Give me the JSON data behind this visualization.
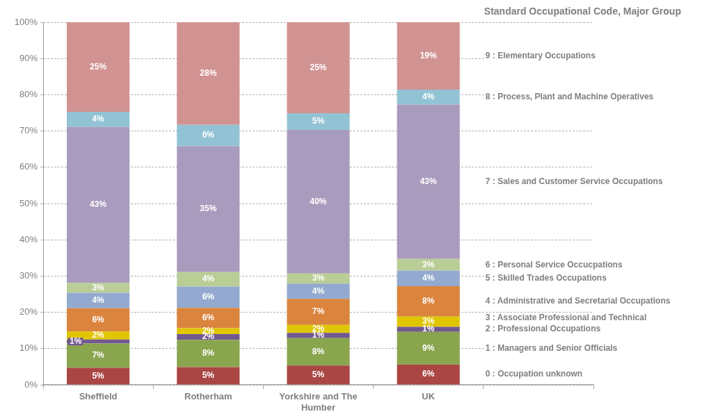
{
  "chart_data": {
    "type": "bar",
    "stacked": true,
    "legend_title": "Standard Occupational Code, Major Group",
    "categories": [
      "Sheffield",
      "Rotherham",
      "Yorkshire and The Humber",
      "UK",
      null
    ],
    "ylim": [
      0,
      100
    ],
    "yticks": [
      {
        "value": 0,
        "label": "0%"
      },
      {
        "value": 10,
        "label": "10%"
      },
      {
        "value": 20,
        "label": "20%"
      },
      {
        "value": 30,
        "label": "30%"
      },
      {
        "value": 40,
        "label": "40%"
      },
      {
        "value": 50,
        "label": "50%"
      },
      {
        "value": 60,
        "label": "60%"
      },
      {
        "value": 70,
        "label": "70%"
      },
      {
        "value": 80,
        "label": "80%"
      },
      {
        "value": 90,
        "label": "90%"
      },
      {
        "value": 100,
        "label": "100%"
      }
    ],
    "grid": "y",
    "series": [
      {
        "name": "0 : Occupation unknown",
        "color": "#aa4643",
        "values": [
          4.7,
          4.9,
          5.3,
          5.6,
          null
        ],
        "value_labels": [
          "5%",
          "5%",
          "5%",
          "6%",
          null
        ]
      },
      {
        "name": "1 : Managers and Senior Officials",
        "color": "#89a54e",
        "values": [
          6.7,
          7.5,
          7.6,
          9.0,
          null
        ],
        "value_labels": [
          "7%",
          "8%",
          "8%",
          "9%",
          null
        ]
      },
      {
        "name": "2 : Professional Occupations",
        "color": "#71588f",
        "values": [
          1.1,
          1.6,
          1.4,
          1.4,
          null
        ],
        "value_labels": [
          "1%",
          "2%",
          "1%",
          "1%",
          null
        ]
      },
      {
        "name": "3 : Associate Professional and Technical",
        "color": "#dfc600",
        "values": [
          2.2,
          1.6,
          2.2,
          2.8,
          null
        ],
        "value_labels": [
          "2%",
          "2%",
          "2%",
          "3%",
          null
        ]
      },
      {
        "name": "4 : Administrative and Secretarial Occupations",
        "color": "#db843d",
        "values": [
          6.4,
          5.6,
          7.2,
          8.4,
          null
        ],
        "value_labels": [
          "6%",
          "6%",
          "7%",
          "8%",
          null
        ]
      },
      {
        "name": "5 : Skilled Trades Occupations",
        "color": "#93a9cf",
        "values": [
          4.3,
          5.9,
          4.2,
          4.3,
          null
        ],
        "value_labels": [
          "4%",
          "6%",
          "4%",
          "4%",
          null
        ]
      },
      {
        "name": "6 : Personal Service Occucpations",
        "color": "#b9cd96",
        "values": [
          2.7,
          4.0,
          2.8,
          3.2,
          null
        ],
        "value_labels": [
          "3%",
          "4%",
          "3%",
          "3%",
          null
        ]
      },
      {
        "name": "7 : Sales and Customer Service Occupations",
        "color": "#a99bbd",
        "values": [
          43.0,
          34.7,
          39.6,
          42.6,
          null
        ],
        "value_labels": [
          "43%",
          "35%",
          "40%",
          "43%",
          null
        ]
      },
      {
        "name": "8 : Process, Plant and Machine Operatives",
        "color": "#92c3d4",
        "values": [
          4.2,
          5.9,
          4.6,
          4.1,
          null
        ],
        "value_labels": [
          "4%",
          "6%",
          "5%",
          "4%",
          null
        ]
      },
      {
        "name": "9 : Elementary Occupations",
        "color": "#d19392",
        "values": [
          24.7,
          28.3,
          25.1,
          18.6,
          null
        ],
        "value_labels": [
          "25%",
          "28%",
          "25%",
          "19%",
          null
        ]
      }
    ]
  }
}
